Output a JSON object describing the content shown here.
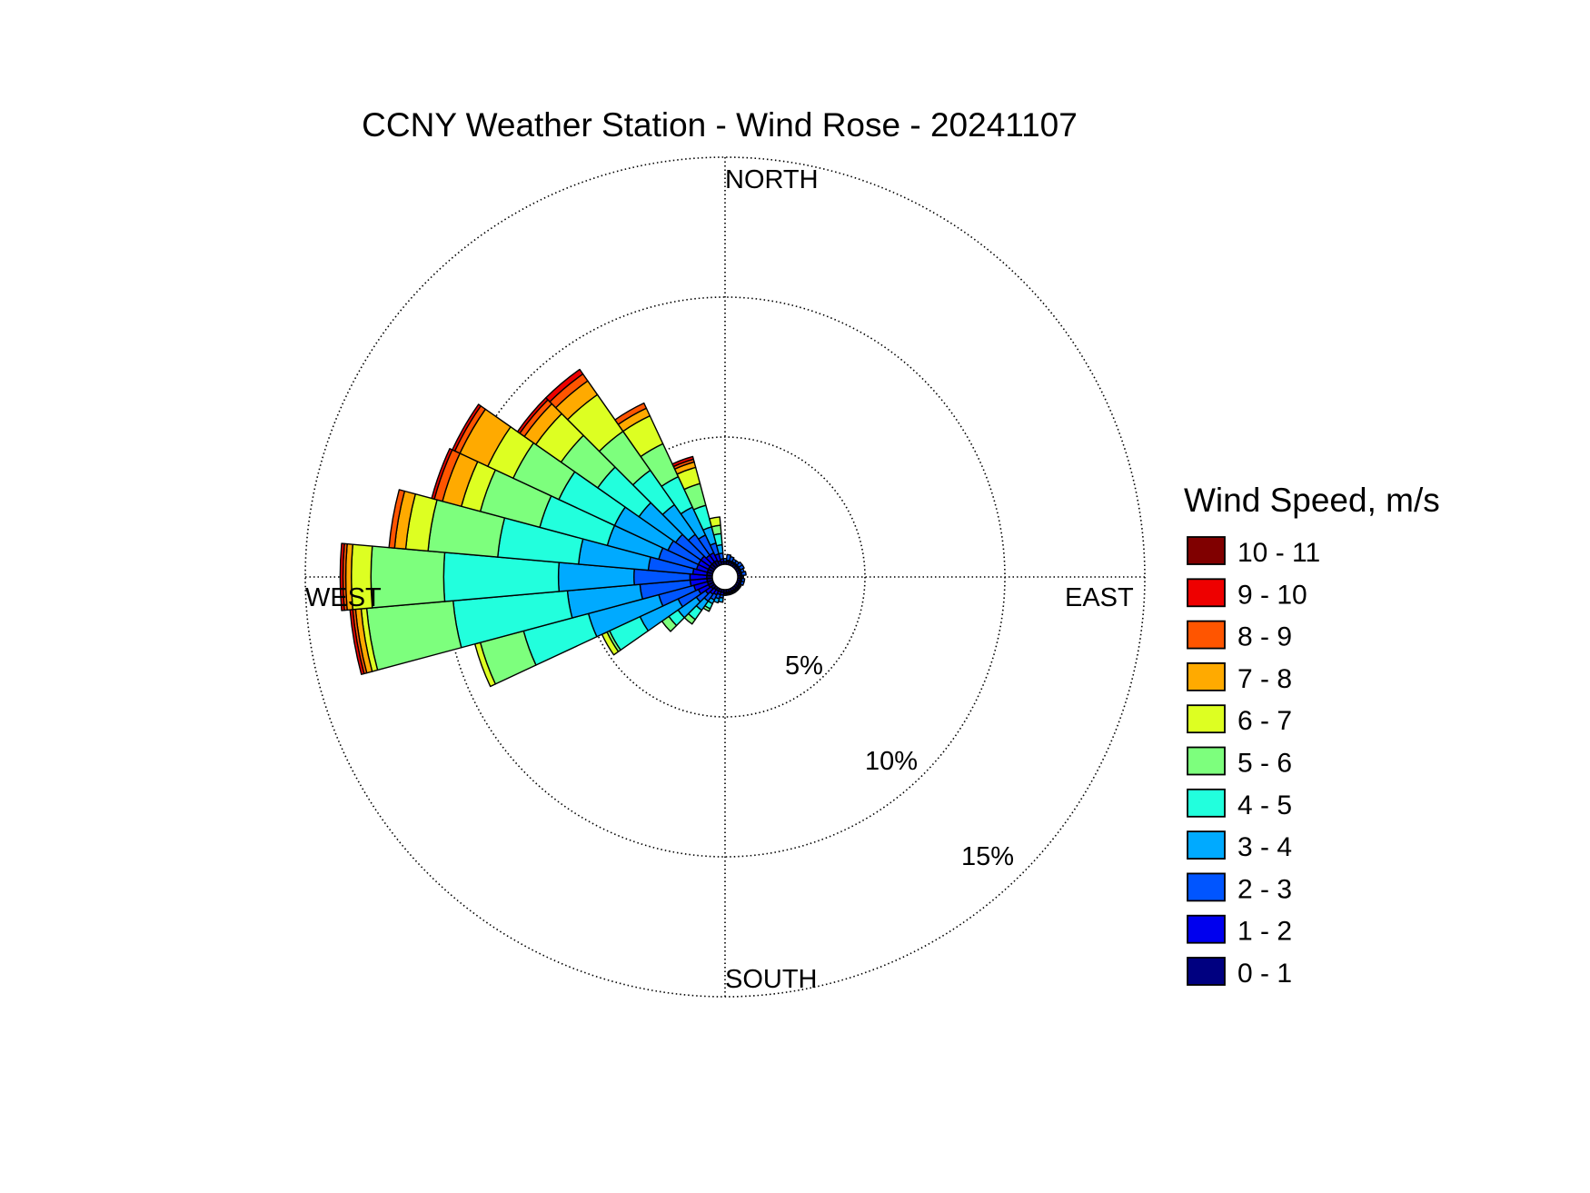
{
  "chart_data": {
    "type": "wind-rose",
    "title": "CCNY Weather Station - Wind Rose - 20241107",
    "directions": {
      "north": "NORTH",
      "east": "EAST",
      "south": "SOUTH",
      "west": "WEST"
    },
    "radial_axis": {
      "max": 15,
      "ticks": [
        5,
        10,
        15
      ],
      "tick_labels": [
        "5%",
        "10%",
        "15%"
      ],
      "unit": "%"
    },
    "grid": true,
    "legend": {
      "title": "Wind Speed, m/s",
      "placement": "right",
      "bins": [
        {
          "label": "10 - 11",
          "color": "#800000"
        },
        {
          "label": "9 - 10",
          "color": "#ee0000"
        },
        {
          "label": "8 - 9",
          "color": "#ff5500"
        },
        {
          "label": "7 - 8",
          "color": "#ffaa00"
        },
        {
          "label": "6 - 7",
          "color": "#ddff22"
        },
        {
          "label": "5 - 6",
          "color": "#7dff7d"
        },
        {
          "label": "4 - 5",
          "color": "#22ffdd"
        },
        {
          "label": "3 - 4",
          "color": "#00aaff"
        },
        {
          "label": "2 - 3",
          "color": "#0055ff"
        },
        {
          "label": "1 - 2",
          "color": "#0000ee"
        },
        {
          "label": "0 - 1",
          "color": "#000080"
        }
      ]
    },
    "bin_order_inner_to_outer": [
      "0 - 1",
      "1 - 2",
      "2 - 3",
      "3 - 4",
      "4 - 5",
      "5 - 6",
      "6 - 7",
      "7 - 8",
      "8 - 9",
      "9 - 10",
      "10 - 11"
    ],
    "sector_width_deg": 10,
    "sectors": [
      {
        "direction_deg": 0,
        "cumulative_pct": [
          0.1,
          0.1,
          0.2
        ]
      },
      {
        "direction_deg": 10,
        "cumulative_pct": [
          0.1,
          0.15,
          0.35
        ]
      },
      {
        "direction_deg": 20,
        "cumulative_pct": [
          0.1,
          0.15,
          0.3
        ]
      },
      {
        "direction_deg": 30,
        "cumulative_pct": [
          0.1,
          0.15,
          0.25
        ]
      },
      {
        "direction_deg": 40,
        "cumulative_pct": [
          0.1,
          0.15,
          0.25
        ]
      },
      {
        "direction_deg": 50,
        "cumulative_pct": [
          0.1,
          0.15,
          0.3
        ]
      },
      {
        "direction_deg": 60,
        "cumulative_pct": [
          0.1,
          0.15,
          0.3
        ]
      },
      {
        "direction_deg": 70,
        "cumulative_pct": [
          0.1,
          0.15,
          0.25
        ]
      },
      {
        "direction_deg": 80,
        "cumulative_pct": [
          0.1,
          0.15,
          0.3
        ]
      },
      {
        "direction_deg": 90,
        "cumulative_pct": [
          0.1,
          0.15,
          0.2
        ]
      },
      {
        "direction_deg": 100,
        "cumulative_pct": [
          0.1,
          0.15,
          0.25
        ]
      },
      {
        "direction_deg": 110,
        "cumulative_pct": [
          0.1,
          0.15,
          0.25
        ]
      },
      {
        "direction_deg": 120,
        "cumulative_pct": [
          0.1,
          0.15,
          0.2
        ]
      },
      {
        "direction_deg": 130,
        "cumulative_pct": [
          0.1,
          0.15,
          0.2
        ]
      },
      {
        "direction_deg": 140,
        "cumulative_pct": [
          0.1,
          0.15,
          0.2
        ]
      },
      {
        "direction_deg": 150,
        "cumulative_pct": [
          0.1,
          0.15,
          0.2
        ]
      },
      {
        "direction_deg": 160,
        "cumulative_pct": [
          0.1,
          0.15,
          0.2
        ]
      },
      {
        "direction_deg": 170,
        "cumulative_pct": [
          0.1,
          0.15,
          0.2
        ]
      },
      {
        "direction_deg": 180,
        "cumulative_pct": [
          0.1,
          0.15,
          0.2
        ]
      },
      {
        "direction_deg": 190,
        "cumulative_pct": [
          0.1,
          0.2,
          0.3,
          0.45
        ]
      },
      {
        "direction_deg": 200,
        "cumulative_pct": [
          0.1,
          0.2,
          0.35,
          0.5
        ]
      },
      {
        "direction_deg": 210,
        "cumulative_pct": [
          0.1,
          0.25,
          0.45,
          0.6,
          0.8,
          0.9
        ]
      },
      {
        "direction_deg": 220,
        "cumulative_pct": [
          0.1,
          0.3,
          0.6,
          1.0,
          1.4,
          1.6
        ]
      },
      {
        "direction_deg": 230,
        "cumulative_pct": [
          0.15,
          0.4,
          0.8,
          1.6,
          2.0,
          2.3
        ]
      },
      {
        "direction_deg": 240,
        "cumulative_pct": [
          0.2,
          0.6,
          1.4,
          2.9,
          4.1,
          4.2,
          4.4
        ]
      },
      {
        "direction_deg": 250,
        "cumulative_pct": [
          0.2,
          0.7,
          2.0,
          4.6,
          7.0,
          8.6,
          8.8
        ]
      },
      {
        "direction_deg": 260,
        "cumulative_pct": [
          0.2,
          0.8,
          2.6,
          5.2,
          9.3,
          12.4,
          12.6,
          12.8,
          12.9,
          13.0
        ]
      },
      {
        "direction_deg": 270,
        "cumulative_pct": [
          0.2,
          0.8,
          2.8,
          5.5,
          9.6,
          12.2,
          12.9,
          13.1,
          13.2,
          13.3
        ]
      },
      {
        "direction_deg": 280,
        "cumulative_pct": [
          0.2,
          0.7,
          2.3,
          4.8,
          7.7,
          10.2,
          11.0,
          11.4,
          11.6
        ]
      },
      {
        "direction_deg": 290,
        "cumulative_pct": [
          0.2,
          0.6,
          2.0,
          3.9,
          6.4,
          8.6,
          9.3,
          10.0,
          10.3,
          10.4
        ]
      },
      {
        "direction_deg": 300,
        "cumulative_pct": [
          0.2,
          0.6,
          1.8,
          3.9,
          6.1,
          7.9,
          8.9,
          10.0,
          10.2,
          10.3
        ]
      },
      {
        "direction_deg": 310,
        "cumulative_pct": [
          0.2,
          0.6,
          1.7,
          3.3,
          5.1,
          6.7,
          7.8,
          8.3,
          8.5,
          8.6
        ]
      },
      {
        "direction_deg": 320,
        "cumulative_pct": [
          0.2,
          0.5,
          1.4,
          2.7,
          4.2,
          5.9,
          7.5,
          8.1,
          8.4,
          8.6
        ]
      },
      {
        "direction_deg": 330,
        "cumulative_pct": [
          0.2,
          0.5,
          1.2,
          2.3,
          3.5,
          4.8,
          5.9,
          6.2,
          6.4
        ]
      },
      {
        "direction_deg": 340,
        "cumulative_pct": [
          0.15,
          0.4,
          0.8,
          1.4,
          2.2,
          3.0,
          3.6,
          3.8,
          3.9,
          4.0
        ]
      },
      {
        "direction_deg": 350,
        "cumulative_pct": [
          0.1,
          0.2,
          0.4,
          0.7,
          1.1,
          1.4,
          1.7
        ]
      }
    ]
  }
}
